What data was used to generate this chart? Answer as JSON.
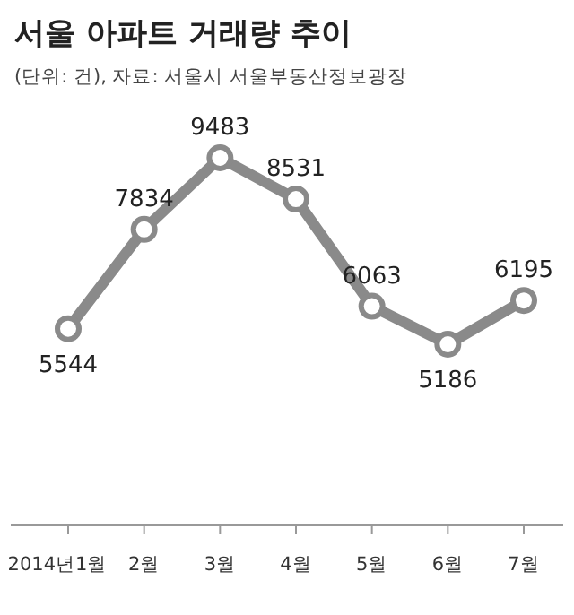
{
  "chart_data": {
    "type": "line",
    "title": "서울 아파트 거래량 추이",
    "subtitle": "(단위: 건), 자료: 서울시 서울부동산정보광장",
    "categories": [
      "2014년1월",
      "2월",
      "3월",
      "4월",
      "5월",
      "6월",
      "7월"
    ],
    "series": [
      {
        "color": "#8a8a8a",
        "values": [
          5544,
          7834,
          9483,
          8531,
          6063,
          5186,
          6195
        ]
      }
    ],
    "data_labels": true,
    "marker": "circle",
    "line_style": "solid"
  }
}
